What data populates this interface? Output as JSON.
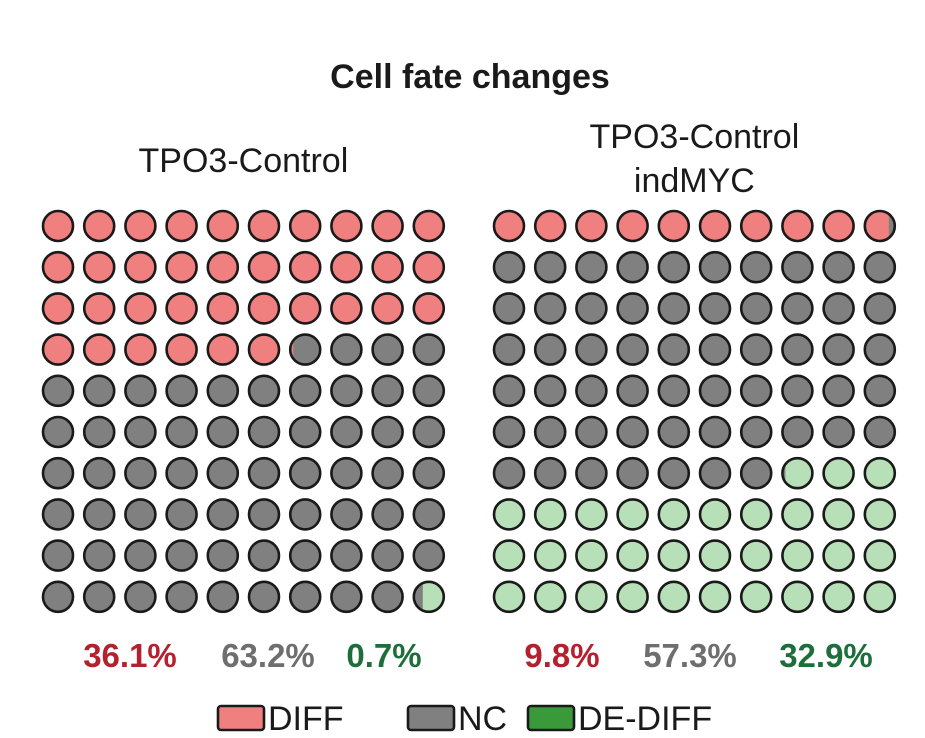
{
  "chart_data": {
    "type": "waffle",
    "title": "Cell fate changes",
    "grid": {
      "rows": 10,
      "cols": 10
    },
    "colors": {
      "DIFF": "#f08080",
      "NC": "#808080",
      "DE-DIFF": "#b8e0b8",
      "DE-DIFF_legend": "#3a9a3a",
      "outline": "#1a1a1a",
      "pct_DIFF": "#b5202e",
      "pct_NC": "#6e6e6e",
      "pct_DE-DIFF": "#1e6e3c"
    },
    "panels": [
      {
        "title_lines": [
          "TPO3-Control"
        ],
        "values": {
          "DIFF": 36.1,
          "NC": 63.2,
          "DE-DIFF": 0.7
        },
        "labels": [
          "36.1%",
          "63.2%",
          "0.7%"
        ]
      },
      {
        "title_lines": [
          "TPO3-Control",
          "indMYC"
        ],
        "values": {
          "DIFF": 9.8,
          "NC": 57.3,
          "DE-DIFF": 32.9
        },
        "labels": [
          "9.8%",
          "57.3%",
          "32.9%"
        ]
      }
    ],
    "legend": {
      "placement": "bottom",
      "entries": [
        "DIFF",
        "NC",
        "DE-DIFF"
      ]
    }
  }
}
